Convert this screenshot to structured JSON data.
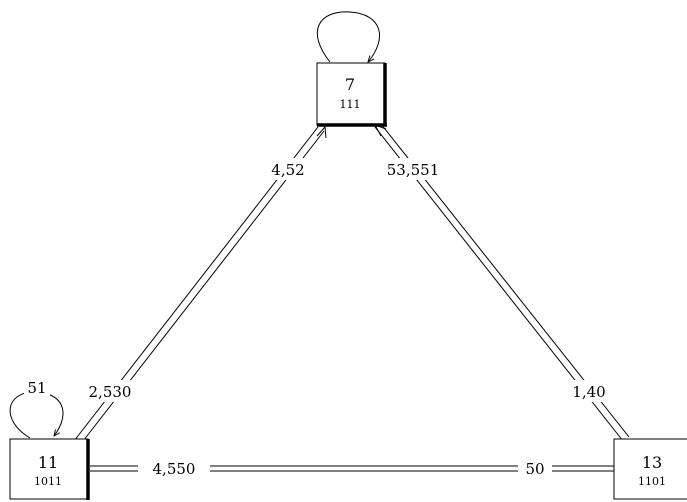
{
  "nodes": {
    "n7": {
      "value": "7",
      "code": "111"
    },
    "n11": {
      "value": "11",
      "code": "1011"
    },
    "n13": {
      "value": "13",
      "code": "1101"
    }
  },
  "edges": {
    "e7_11": {
      "label_top": "4,52",
      "label_bottom": "2,530"
    },
    "e7_13": {
      "label_top": "53,551",
      "label_bottom": "1,40"
    },
    "e11_13": {
      "label_left": "4,550",
      "label_right": "50"
    }
  },
  "loops": {
    "loop7": {
      "label": ""
    },
    "loop11": {
      "label": "51"
    }
  },
  "colors": {
    "stroke": "#000000",
    "background": "#ffffff"
  }
}
